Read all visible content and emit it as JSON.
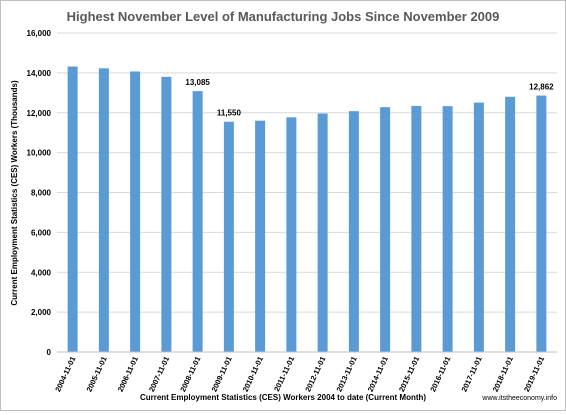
{
  "chart_data": {
    "type": "bar",
    "title": "Highest November Level of Manufacturing Jobs Since November 2009",
    "xlabel": "Current Employment Statistics (CES) Workers 2004 to date (Current Month)",
    "ylabel": "Current Employment Statistics (CES) Workers (Thousands)",
    "ylim": [
      0,
      16000
    ],
    "yticks": [
      0,
      2000,
      4000,
      6000,
      8000,
      10000,
      12000,
      14000,
      16000
    ],
    "ytick_labels": [
      "0",
      "2,000",
      "4,000",
      "6,000",
      "8,000",
      "10,000",
      "12,000",
      "14,000",
      "16,000"
    ],
    "grid": true,
    "bar_color": "#5b9bd5",
    "categories": [
      "2004-11-01",
      "2005-11-01",
      "2006-11-01",
      "2007-11-01",
      "2008-11-01",
      "2009-11-01",
      "2010-11-01",
      "2011-11-01",
      "2012-11-01",
      "2013-11-01",
      "2014-11-01",
      "2015-11-01",
      "2016-11-01",
      "2017-11-01",
      "2018-11-01",
      "2019-11-01"
    ],
    "values": [
      14320,
      14230,
      14070,
      13800,
      13085,
      11550,
      11600,
      11770,
      11960,
      12080,
      12280,
      12340,
      12330,
      12510,
      12800,
      12862
    ],
    "data_labels": [
      {
        "index": 4,
        "text": "13,085"
      },
      {
        "index": 5,
        "text": "11,550"
      },
      {
        "index": 15,
        "text": "12,862"
      }
    ],
    "source_note": "www.itstheeconomy.info"
  }
}
